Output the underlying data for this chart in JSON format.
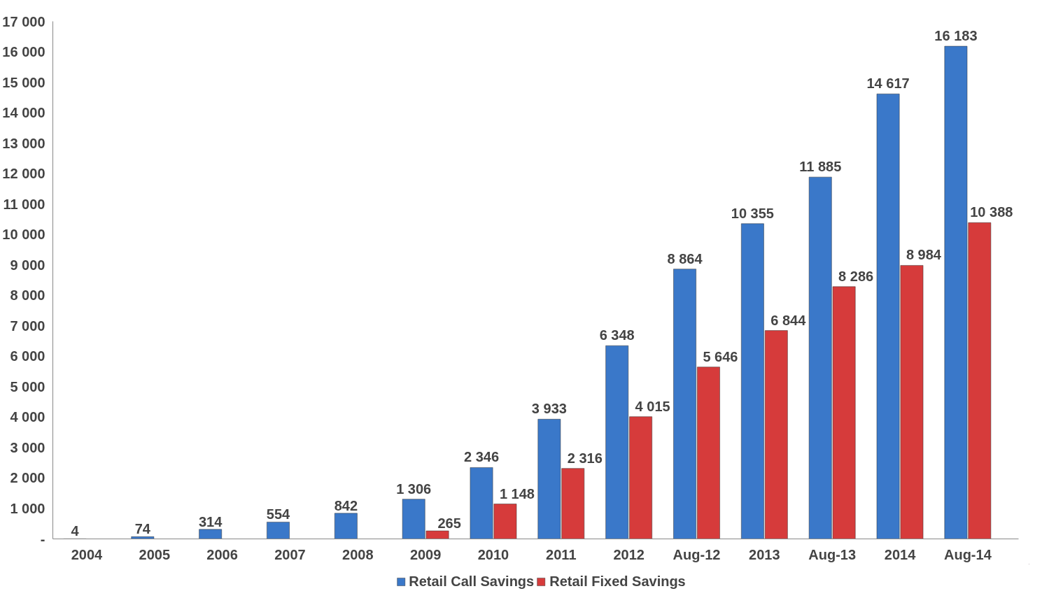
{
  "chart_data": {
    "type": "bar",
    "categories": [
      "2004",
      "2005",
      "2006",
      "2007",
      "2008",
      "2009",
      "2010",
      "2011",
      "2012",
      "Aug-12",
      "2013",
      "Aug-13",
      "2014",
      "Aug-14"
    ],
    "series": [
      {
        "name": "Retail Call Savings",
        "color": "#3a78c9",
        "values": [
          4,
          74,
          314,
          554,
          842,
          1306,
          2346,
          3933,
          6348,
          8864,
          10355,
          11885,
          14617,
          16183
        ],
        "value_labels": [
          "4",
          "74",
          "314",
          "554",
          "842",
          "1 306",
          "2 346",
          "3 933",
          "6 348",
          "8 864",
          "10 355",
          "11 885",
          "14 617",
          "16 183"
        ]
      },
      {
        "name": "Retail Fixed Savings",
        "color": "#d63b3b",
        "values": [
          null,
          null,
          null,
          null,
          null,
          265,
          1148,
          2316,
          4015,
          5646,
          6844,
          8286,
          8984,
          10388
        ],
        "value_labels": [
          null,
          null,
          null,
          null,
          null,
          "265",
          "1 148",
          "2 316",
          "4 015",
          "5 646",
          "6 844",
          "8 286",
          "8 984",
          "10 388"
        ]
      }
    ],
    "ylim": [
      0,
      17000
    ],
    "yticks": [
      {
        "value": 0,
        "label": "-"
      },
      {
        "value": 1000,
        "label": "1 000"
      },
      {
        "value": 2000,
        "label": "2 000"
      },
      {
        "value": 3000,
        "label": "3 000"
      },
      {
        "value": 4000,
        "label": "4 000"
      },
      {
        "value": 5000,
        "label": "5 000"
      },
      {
        "value": 6000,
        "label": "6 000"
      },
      {
        "value": 7000,
        "label": "7 000"
      },
      {
        "value": 8000,
        "label": "8 000"
      },
      {
        "value": 9000,
        "label": "9 000"
      },
      {
        "value": 10000,
        "label": "10 000"
      },
      {
        "value": 11000,
        "label": "11 000"
      },
      {
        "value": 12000,
        "label": "12 000"
      },
      {
        "value": 13000,
        "label": "13 000"
      },
      {
        "value": 14000,
        "label": "14 000"
      },
      {
        "value": 15000,
        "label": "15 000"
      },
      {
        "value": 16000,
        "label": "16 000"
      },
      {
        "value": 17000,
        "label": "17 000"
      }
    ],
    "grid": false,
    "legend": "bottom"
  }
}
